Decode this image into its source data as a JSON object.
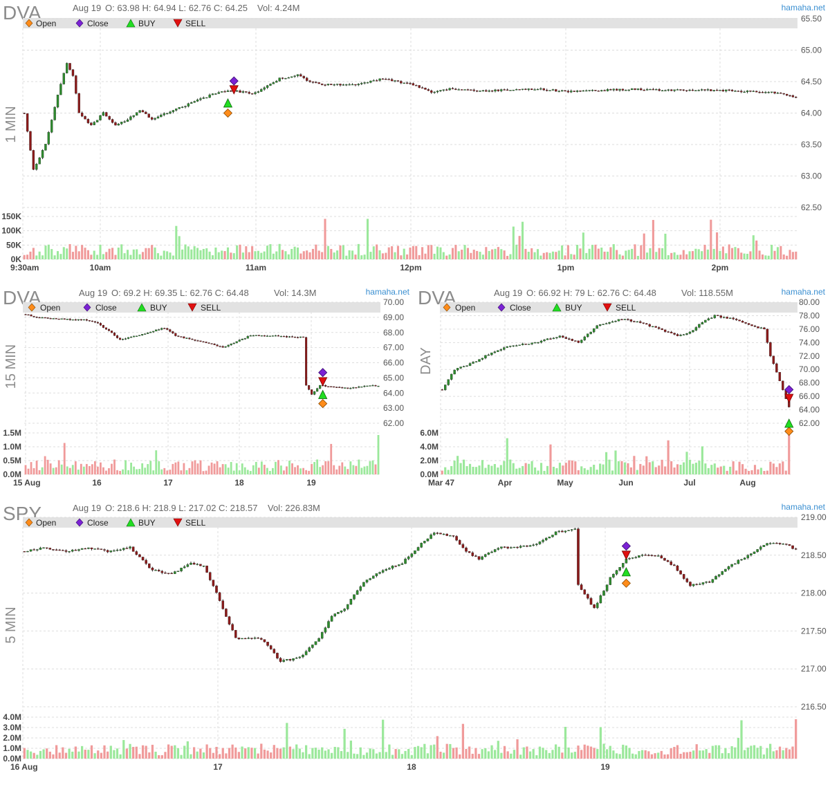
{
  "charts": [
    {
      "id": "dva-1min",
      "symbol": "DVA",
      "period_label": "1 MIN",
      "info": {
        "date": "Aug 19",
        "ohlc": "O: 63.98 H: 64.94 L: 62.76 C: 64.25",
        "volume": "Vol: 4.24M"
      },
      "brand": "hamaha.net",
      "legend": [
        "Open",
        "Close",
        "BUY",
        "SELL"
      ]
    },
    {
      "id": "dva-15min",
      "symbol": "DVA",
      "period_label": "15 MIN",
      "info": {
        "date": "Aug 19",
        "ohlc": "O: 69.2 H: 69.35 L: 62.76 C: 64.48",
        "volume": "Vol: 14.3M"
      },
      "brand": "hamaha.net",
      "legend": [
        "Open",
        "Close",
        "BUY",
        "SELL"
      ]
    },
    {
      "id": "dva-day",
      "symbol": "DVA",
      "period_label": "DAY",
      "info": {
        "date": "Aug 19",
        "ohlc": "O: 66.92 H: 79 L: 62.76 C: 64.48",
        "volume": "Vol: 118.55M"
      },
      "brand": "hamaha.net",
      "legend": [
        "Open",
        "Close",
        "BUY",
        "SELL"
      ]
    },
    {
      "id": "spy-5min",
      "symbol": "SPY",
      "period_label": "5 MIN",
      "info": {
        "date": "Aug 19",
        "ohlc": "O: 218.6 H: 218.9 L: 217.02 C: 218.57",
        "volume": "Vol: 226.83M"
      },
      "brand": "hamaha.net",
      "legend": [
        "Open",
        "Close",
        "BUY",
        "SELL"
      ]
    }
  ],
  "colors": {
    "up_candle": "#2e8b2e",
    "down_candle": "#8b1a1a",
    "up_volume": "#9be89b",
    "down_volume": "#f09a9a",
    "open_marker": "#ff8c1a",
    "close_marker": "#7b22d4",
    "buy_marker": "#22dd22",
    "sell_marker": "#e01010",
    "brand": "#3a8fd1"
  },
  "chart_data": [
    {
      "type": "candlestick",
      "title": "DVA 1 MIN",
      "price_ticks": [
        "65.50",
        "65.00",
        "64.50",
        "64.00",
        "63.50",
        "63.00",
        "62.50"
      ],
      "ylim": [
        62.5,
        65.5
      ],
      "volume_ticks": [
        "150K",
        "100K",
        "50K",
        "0K"
      ],
      "time_ticks": [
        "9:30am",
        "10am",
        "11am",
        "12pm",
        "1pm",
        "2pm"
      ],
      "path": [
        [
          0,
          64.0
        ],
        [
          3,
          63.1
        ],
        [
          7,
          63.5
        ],
        [
          11,
          64.3
        ],
        [
          14,
          64.8
        ],
        [
          16,
          64.6
        ],
        [
          18,
          64.0
        ],
        [
          22,
          63.8
        ],
        [
          26,
          64.0
        ],
        [
          30,
          63.8
        ],
        [
          34,
          63.9
        ],
        [
          38,
          64.05
        ],
        [
          42,
          63.9
        ],
        [
          47,
          64.0
        ],
        [
          52,
          64.1
        ],
        [
          57,
          64.2
        ],
        [
          62,
          64.3
        ],
        [
          66,
          64.35
        ],
        [
          70,
          64.35
        ],
        [
          75,
          64.3
        ],
        [
          79,
          64.4
        ],
        [
          84,
          64.55
        ],
        [
          90,
          64.6
        ],
        [
          94,
          64.5
        ],
        [
          98,
          64.45
        ],
        [
          105,
          64.45
        ],
        [
          110,
          64.45
        ],
        [
          118,
          64.55
        ],
        [
          123,
          64.5
        ],
        [
          128,
          64.45
        ],
        [
          134,
          64.33
        ],
        [
          140,
          64.38
        ],
        [
          150,
          64.35
        ],
        [
          160,
          64.37
        ],
        [
          170,
          64.38
        ],
        [
          180,
          64.34
        ],
        [
          190,
          64.36
        ],
        [
          200,
          64.38
        ],
        [
          210,
          64.36
        ],
        [
          220,
          64.37
        ],
        [
          230,
          64.36
        ],
        [
          240,
          64.34
        ],
        [
          245,
          64.33
        ],
        [
          250,
          64.3
        ],
        [
          254,
          64.25
        ]
      ],
      "n_bars": 255,
      "markers": [
        {
          "label": "Open",
          "bar": 67,
          "price": 64.0
        },
        {
          "label": "BUY",
          "bar": 67,
          "price": 64.16
        },
        {
          "label": "SELL",
          "bar": 69,
          "price": 64.37
        },
        {
          "label": "Close",
          "bar": 69,
          "price": 64.51
        }
      ]
    },
    {
      "type": "candlestick",
      "title": "DVA 15 MIN",
      "price_ticks": [
        "70.00",
        "69.00",
        "68.00",
        "67.00",
        "66.00",
        "65.00",
        "64.00",
        "63.00",
        "62.00"
      ],
      "ylim": [
        62.0,
        70.0
      ],
      "volume_ticks": [
        "1.5M",
        "1.0M",
        "0.5M",
        "0.0M"
      ],
      "time_ticks": [
        "15 Aug",
        "16",
        "17",
        "18",
        "19"
      ],
      "path": [
        [
          0,
          69.2
        ],
        [
          4,
          69.0
        ],
        [
          10,
          68.9
        ],
        [
          16,
          68.85
        ],
        [
          21,
          68.85
        ],
        [
          26,
          68.6
        ],
        [
          30,
          68.1
        ],
        [
          34,
          67.5
        ],
        [
          38,
          67.7
        ],
        [
          44,
          68.0
        ],
        [
          50,
          68.3
        ],
        [
          54,
          67.8
        ],
        [
          60,
          67.5
        ],
        [
          66,
          67.3
        ],
        [
          71,
          67.0
        ],
        [
          76,
          67.4
        ],
        [
          81,
          67.8
        ],
        [
          88,
          67.8
        ],
        [
          95,
          67.7
        ],
        [
          100,
          67.7
        ],
        [
          101,
          64.5
        ],
        [
          103,
          63.9
        ],
        [
          106,
          64.5
        ],
        [
          110,
          64.4
        ],
        [
          116,
          64.3
        ],
        [
          120,
          64.4
        ],
        [
          124,
          64.5
        ],
        [
          127,
          64.48
        ]
      ],
      "n_bars": 128,
      "markers": [
        {
          "label": "Open",
          "bar": 107,
          "price": 63.3
        },
        {
          "label": "BUY",
          "bar": 107,
          "price": 63.9
        },
        {
          "label": "SELL",
          "bar": 107,
          "price": 64.75
        },
        {
          "label": "Close",
          "bar": 107,
          "price": 65.35
        }
      ]
    },
    {
      "type": "candlestick",
      "title": "DVA DAY",
      "price_ticks": [
        "80.00",
        "78.00",
        "76.00",
        "74.00",
        "72.00",
        "70.00",
        "68.00",
        "66.00",
        "64.00",
        "62.00"
      ],
      "ylim": [
        62.0,
        80.0
      ],
      "volume_ticks": [
        "6.0M",
        "4.0M",
        "2.0M",
        "0.0M"
      ],
      "time_ticks": [
        "Mar 47",
        "Apr",
        "May",
        "Jun",
        "Jul",
        "Aug"
      ],
      "path": [
        [
          0,
          67.0
        ],
        [
          4,
          70.0
        ],
        [
          10,
          71.0
        ],
        [
          16,
          72.5
        ],
        [
          22,
          73.5
        ],
        [
          30,
          74.0
        ],
        [
          38,
          75.0
        ],
        [
          44,
          74.0
        ],
        [
          50,
          76.5
        ],
        [
          58,
          77.5
        ],
        [
          64,
          77.0
        ],
        [
          70,
          76.0
        ],
        [
          76,
          75.0
        ],
        [
          80,
          75.5
        ],
        [
          84,
          77.0
        ],
        [
          88,
          78.0
        ],
        [
          94,
          77.5
        ],
        [
          100,
          76.5
        ],
        [
          104,
          76.0
        ],
        [
          106,
          72.0
        ],
        [
          108,
          69.5
        ],
        [
          110,
          67.0
        ],
        [
          112,
          64.48
        ]
      ],
      "n_bars": 113,
      "markers": [
        {
          "label": "Open",
          "bar": 112,
          "price": 60.8
        },
        {
          "label": "BUY",
          "bar": 112,
          "price": 62.0
        },
        {
          "label": "SELL",
          "bar": 112,
          "price": 65.7
        },
        {
          "label": "Close",
          "bar": 112,
          "price": 67.0
        }
      ]
    },
    {
      "type": "candlestick",
      "title": "SPY 5 MIN",
      "price_ticks": [
        "219.00",
        "218.50",
        "218.00",
        "217.50",
        "217.00",
        "216.50"
      ],
      "ylim": [
        216.5,
        219.0
      ],
      "volume_ticks": [
        "4.0M",
        "3.0M",
        "2.0M",
        "1.0M",
        "0.0M"
      ],
      "time_ticks": [
        "16 Aug",
        "17",
        "18",
        "19"
      ],
      "path": [
        [
          0,
          218.55
        ],
        [
          6,
          218.6
        ],
        [
          14,
          218.55
        ],
        [
          20,
          218.6
        ],
        [
          26,
          218.55
        ],
        [
          33,
          218.6
        ],
        [
          40,
          218.3
        ],
        [
          46,
          218.25
        ],
        [
          52,
          218.4
        ],
        [
          56,
          218.35
        ],
        [
          60,
          218.0
        ],
        [
          66,
          217.4
        ],
        [
          74,
          217.4
        ],
        [
          80,
          217.1
        ],
        [
          86,
          217.15
        ],
        [
          92,
          217.4
        ],
        [
          96,
          217.7
        ],
        [
          100,
          217.8
        ],
        [
          106,
          218.15
        ],
        [
          112,
          218.3
        ],
        [
          118,
          218.4
        ],
        [
          124,
          218.65
        ],
        [
          128,
          218.8
        ],
        [
          134,
          218.75
        ],
        [
          138,
          218.55
        ],
        [
          142,
          218.45
        ],
        [
          148,
          218.6
        ],
        [
          154,
          218.6
        ],
        [
          160,
          218.65
        ],
        [
          166,
          218.8
        ],
        [
          172,
          218.85
        ],
        [
          173,
          218.1
        ],
        [
          178,
          217.8
        ],
        [
          183,
          218.2
        ],
        [
          188,
          218.45
        ],
        [
          193,
          218.5
        ],
        [
          198,
          218.5
        ],
        [
          203,
          218.35
        ],
        [
          208,
          218.1
        ],
        [
          214,
          218.15
        ],
        [
          220,
          218.35
        ],
        [
          226,
          218.5
        ],
        [
          232,
          218.65
        ],
        [
          238,
          218.65
        ],
        [
          241,
          218.57
        ]
      ],
      "n_bars": 242,
      "markers": [
        {
          "label": "Open",
          "bar": 188,
          "price": 218.13
        },
        {
          "label": "BUY",
          "bar": 188,
          "price": 218.28
        },
        {
          "label": "SELL",
          "bar": 188,
          "price": 218.5
        },
        {
          "label": "Close",
          "bar": 188,
          "price": 218.62
        }
      ]
    }
  ]
}
